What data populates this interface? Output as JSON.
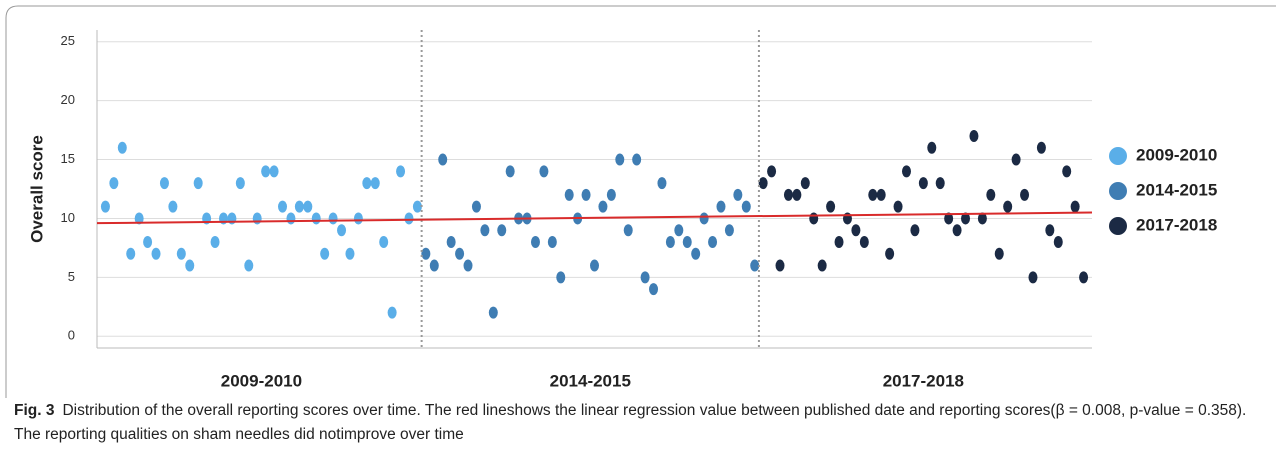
{
  "chart_data": {
    "type": "scatter",
    "ylabel": "Overall score",
    "categories": [
      "2009-2010",
      "2014-2015",
      "2017-2018"
    ],
    "ylim": [
      -1,
      26
    ],
    "yticks": [
      0,
      5,
      10,
      15,
      20,
      25
    ],
    "grid": true,
    "legend": "right",
    "series": [
      {
        "name": "2009-2010",
        "color": "#5aaee8",
        "values": [
          11,
          13,
          16,
          7,
          10,
          8,
          7,
          13,
          11,
          7,
          6,
          13,
          10,
          8,
          10,
          10,
          13,
          6,
          10,
          14,
          14,
          11,
          10,
          11,
          11,
          10,
          7,
          10,
          9,
          7,
          10,
          13,
          13,
          8,
          2,
          14,
          10,
          11
        ]
      },
      {
        "name": "2014-2015",
        "color": "#3f7db3",
        "values": [
          7,
          6,
          15,
          8,
          7,
          6,
          11,
          9,
          2,
          9,
          14,
          10,
          10,
          8,
          14,
          8,
          5,
          12,
          10,
          12,
          6,
          11,
          12,
          15,
          9,
          15,
          5,
          4,
          13,
          8,
          9,
          8,
          7,
          10,
          8,
          11,
          9,
          12,
          11,
          6
        ]
      },
      {
        "name": "2017-2018",
        "color": "#1b2a44",
        "values": [
          13,
          14,
          6,
          12,
          12,
          13,
          10,
          6,
          11,
          8,
          10,
          9,
          8,
          12,
          12,
          7,
          11,
          14,
          9,
          13,
          16,
          13,
          10,
          9,
          10,
          17,
          10,
          12,
          7,
          11,
          15,
          12,
          5,
          16,
          9,
          8,
          14,
          11,
          5
        ]
      }
    ],
    "trendline": {
      "color": "#d92b2b",
      "values": [
        9.6,
        10.5
      ]
    }
  },
  "caption": {
    "label": "Fig. 3",
    "text": "Distribution of the overall reporting scores over time. The red lineshows the linear regression value between published date and reporting scores(β = 0.008, p-value = 0.358). The reporting qualities on sham needles did notimprove over time"
  }
}
